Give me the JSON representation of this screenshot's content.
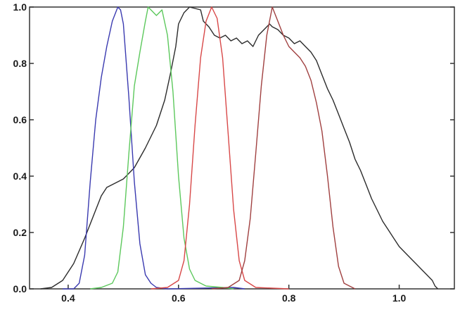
{
  "chart_data": {
    "type": "line",
    "title": "",
    "xlabel": "",
    "ylabel": "",
    "xlim": [
      0.33,
      1.1
    ],
    "ylim": [
      0.0,
      1.0
    ],
    "grid": false,
    "x_ticks": [
      {
        "value": 0.4,
        "label": "0.4"
      },
      {
        "value": 0.6,
        "label": "0.6"
      },
      {
        "value": 0.8,
        "label": "0.8"
      },
      {
        "value": 1.0,
        "label": "1.0"
      }
    ],
    "y_ticks": [
      {
        "value": 0.0,
        "label": "0.0"
      },
      {
        "value": 0.2,
        "label": "0.2"
      },
      {
        "value": 0.4,
        "label": "0.4"
      },
      {
        "value": 0.6,
        "label": "0.6"
      },
      {
        "value": 0.8,
        "label": "0.8"
      },
      {
        "value": 1.0,
        "label": "1.0"
      }
    ],
    "series": [
      {
        "color": "#2b2b2b",
        "points": [
          [
            0.35,
            0.0
          ],
          [
            0.37,
            0.005
          ],
          [
            0.39,
            0.03
          ],
          [
            0.41,
            0.09
          ],
          [
            0.43,
            0.18
          ],
          [
            0.45,
            0.28
          ],
          [
            0.46,
            0.33
          ],
          [
            0.47,
            0.36
          ],
          [
            0.48,
            0.37
          ],
          [
            0.5,
            0.39
          ],
          [
            0.52,
            0.43
          ],
          [
            0.54,
            0.5
          ],
          [
            0.56,
            0.58
          ],
          [
            0.575,
            0.67
          ],
          [
            0.585,
            0.76
          ],
          [
            0.595,
            0.86
          ],
          [
            0.6,
            0.94
          ],
          [
            0.61,
            0.98
          ],
          [
            0.62,
            1.0
          ],
          [
            0.63,
            0.995
          ],
          [
            0.64,
            0.99
          ],
          [
            0.645,
            0.95
          ],
          [
            0.655,
            0.93
          ],
          [
            0.665,
            0.9
          ],
          [
            0.675,
            0.89
          ],
          [
            0.685,
            0.9
          ],
          [
            0.695,
            0.88
          ],
          [
            0.705,
            0.89
          ],
          [
            0.715,
            0.87
          ],
          [
            0.725,
            0.88
          ],
          [
            0.735,
            0.86
          ],
          [
            0.745,
            0.9
          ],
          [
            0.755,
            0.92
          ],
          [
            0.765,
            0.94
          ],
          [
            0.77,
            0.93
          ],
          [
            0.78,
            0.92
          ],
          [
            0.79,
            0.9
          ],
          [
            0.8,
            0.89
          ],
          [
            0.81,
            0.87
          ],
          [
            0.82,
            0.88
          ],
          [
            0.83,
            0.86
          ],
          [
            0.84,
            0.84
          ],
          [
            0.85,
            0.81
          ],
          [
            0.86,
            0.76
          ],
          [
            0.87,
            0.71
          ],
          [
            0.88,
            0.67
          ],
          [
            0.89,
            0.62
          ],
          [
            0.9,
            0.57
          ],
          [
            0.91,
            0.52
          ],
          [
            0.92,
            0.46
          ],
          [
            0.93,
            0.42
          ],
          [
            0.94,
            0.37
          ],
          [
            0.95,
            0.32
          ],
          [
            0.96,
            0.28
          ],
          [
            0.97,
            0.24
          ],
          [
            0.98,
            0.21
          ],
          [
            0.99,
            0.18
          ],
          [
            1.0,
            0.15
          ],
          [
            1.01,
            0.13
          ],
          [
            1.02,
            0.11
          ],
          [
            1.03,
            0.09
          ],
          [
            1.04,
            0.07
          ],
          [
            1.05,
            0.05
          ],
          [
            1.06,
            0.03
          ],
          [
            1.065,
            0.01
          ],
          [
            1.07,
            0.0
          ]
        ]
      },
      {
        "color": "#3a3ab0",
        "points": [
          [
            0.39,
            0.0
          ],
          [
            0.41,
            0.0
          ],
          [
            0.42,
            0.02
          ],
          [
            0.43,
            0.12
          ],
          [
            0.44,
            0.38
          ],
          [
            0.45,
            0.6
          ],
          [
            0.46,
            0.75
          ],
          [
            0.47,
            0.86
          ],
          [
            0.48,
            0.95
          ],
          [
            0.49,
            1.0
          ],
          [
            0.495,
            0.99
          ],
          [
            0.5,
            0.94
          ],
          [
            0.51,
            0.68
          ],
          [
            0.52,
            0.38
          ],
          [
            0.53,
            0.16
          ],
          [
            0.54,
            0.05
          ],
          [
            0.55,
            0.02
          ],
          [
            0.56,
            0.005
          ],
          [
            0.58,
            0.0
          ],
          [
            0.7,
            0.005
          ],
          [
            0.72,
            0.0
          ]
        ]
      },
      {
        "color": "#5cc85c",
        "points": [
          [
            0.44,
            0.0
          ],
          [
            0.46,
            0.005
          ],
          [
            0.48,
            0.02
          ],
          [
            0.49,
            0.06
          ],
          [
            0.5,
            0.22
          ],
          [
            0.51,
            0.48
          ],
          [
            0.52,
            0.72
          ],
          [
            0.53,
            0.84
          ],
          [
            0.54,
            0.95
          ],
          [
            0.545,
            1.0
          ],
          [
            0.55,
            0.99
          ],
          [
            0.56,
            0.97
          ],
          [
            0.57,
            0.99
          ],
          [
            0.58,
            0.9
          ],
          [
            0.59,
            0.7
          ],
          [
            0.6,
            0.4
          ],
          [
            0.61,
            0.18
          ],
          [
            0.62,
            0.07
          ],
          [
            0.63,
            0.03
          ],
          [
            0.65,
            0.01
          ],
          [
            0.68,
            0.005
          ],
          [
            0.7,
            0.0
          ]
        ]
      },
      {
        "color": "#d84848",
        "points": [
          [
            0.55,
            0.0
          ],
          [
            0.58,
            0.005
          ],
          [
            0.6,
            0.03
          ],
          [
            0.61,
            0.1
          ],
          [
            0.62,
            0.3
          ],
          [
            0.63,
            0.58
          ],
          [
            0.64,
            0.82
          ],
          [
            0.65,
            0.95
          ],
          [
            0.66,
            1.0
          ],
          [
            0.67,
            0.96
          ],
          [
            0.68,
            0.82
          ],
          [
            0.69,
            0.55
          ],
          [
            0.7,
            0.28
          ],
          [
            0.71,
            0.1
          ],
          [
            0.72,
            0.03
          ],
          [
            0.74,
            0.005
          ],
          [
            0.8,
            0.0
          ]
        ]
      },
      {
        "color": "#a04040",
        "points": [
          [
            0.66,
            0.0
          ],
          [
            0.69,
            0.005
          ],
          [
            0.71,
            0.03
          ],
          [
            0.72,
            0.1
          ],
          [
            0.73,
            0.25
          ],
          [
            0.74,
            0.48
          ],
          [
            0.75,
            0.72
          ],
          [
            0.76,
            0.9
          ],
          [
            0.77,
            1.0
          ],
          [
            0.78,
            0.95
          ],
          [
            0.79,
            0.9
          ],
          [
            0.8,
            0.86
          ],
          [
            0.81,
            0.84
          ],
          [
            0.82,
            0.82
          ],
          [
            0.83,
            0.79
          ],
          [
            0.84,
            0.74
          ],
          [
            0.85,
            0.66
          ],
          [
            0.86,
            0.56
          ],
          [
            0.87,
            0.4
          ],
          [
            0.88,
            0.22
          ],
          [
            0.89,
            0.08
          ],
          [
            0.9,
            0.02
          ],
          [
            0.92,
            0.0
          ]
        ]
      }
    ]
  }
}
